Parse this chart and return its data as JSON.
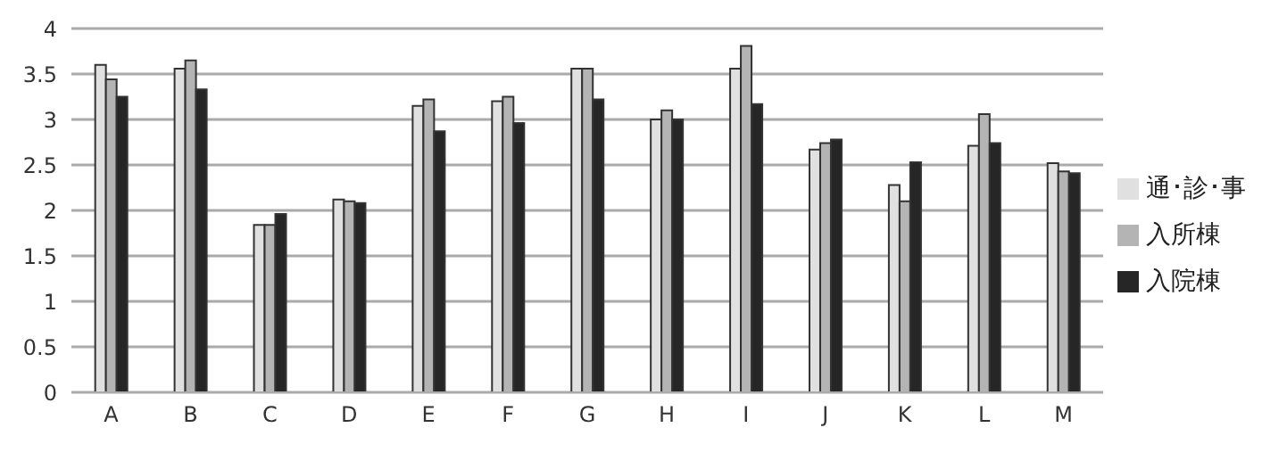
{
  "chart_data": {
    "type": "bar",
    "categories": [
      "A",
      "B",
      "C",
      "D",
      "E",
      "F",
      "G",
      "H",
      "I",
      "J",
      "K",
      "L",
      "M"
    ],
    "series": [
      {
        "name": "通･診･事",
        "color": "#e0e0e0",
        "values": [
          3.6,
          3.56,
          1.84,
          2.12,
          3.15,
          3.2,
          3.56,
          3.0,
          3.56,
          2.67,
          2.28,
          2.71,
          2.52
        ]
      },
      {
        "name": "入所棟",
        "color": "#b4b4b4",
        "values": [
          3.44,
          3.65,
          1.84,
          2.1,
          3.22,
          3.25,
          3.56,
          3.1,
          3.81,
          2.74,
          2.1,
          3.06,
          2.43
        ]
      },
      {
        "name": "入院棟",
        "color": "#262626",
        "values": [
          3.25,
          3.33,
          1.96,
          2.08,
          2.87,
          2.96,
          3.22,
          3.0,
          3.17,
          2.78,
          2.53,
          2.74,
          2.41
        ]
      }
    ],
    "ylim": [
      0,
      4
    ],
    "yticks": [
      0,
      0.5,
      1,
      1.5,
      2,
      2.5,
      3,
      3.5,
      4
    ],
    "grid": "y",
    "legend": "right"
  }
}
